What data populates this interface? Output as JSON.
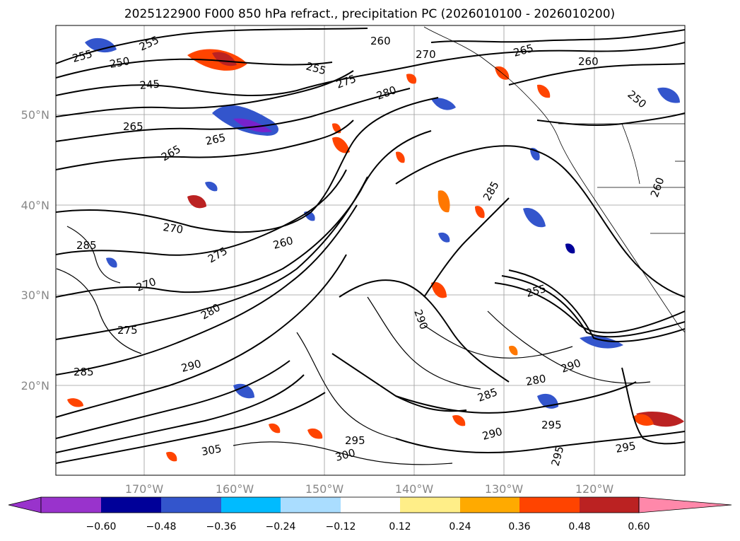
{
  "title": "2025122900 F000 850 hPa refract., precipitation PC (2026010100 - 2026010200)",
  "lon_labels": [
    "170°W",
    "160°W",
    "150°W",
    "140°W",
    "130°W",
    "120°W"
  ],
  "lat_labels": [
    "50°N",
    "40°N",
    "30°N",
    "20°N"
  ],
  "colorbar": {
    "tick_labels": [
      "−0.60",
      "−0.48",
      "−0.36",
      "−0.24",
      "−0.12",
      "0.12",
      "0.24",
      "0.36",
      "0.48",
      "0.60"
    ],
    "colors": [
      "#9933cc",
      "#000099",
      "#3355cc",
      "#00bbff",
      "#aaddff",
      "#ffffff",
      "#ffee88",
      "#ffaa00",
      "#ff4400",
      "#bb2222",
      "#ff88aa"
    ]
  },
  "contour_labels": [
    "255",
    "250",
    "255",
    "245",
    "265",
    "265",
    "265",
    "260",
    "255",
    "275",
    "280",
    "270",
    "265",
    "260",
    "270",
    "275",
    "260",
    "285",
    "270",
    "275",
    "280",
    "285",
    "290",
    "285",
    "280",
    "290",
    "295",
    "290",
    "295",
    "305",
    "300",
    "295",
    "290",
    "285",
    "295",
    "250",
    "260",
    "255"
  ]
}
